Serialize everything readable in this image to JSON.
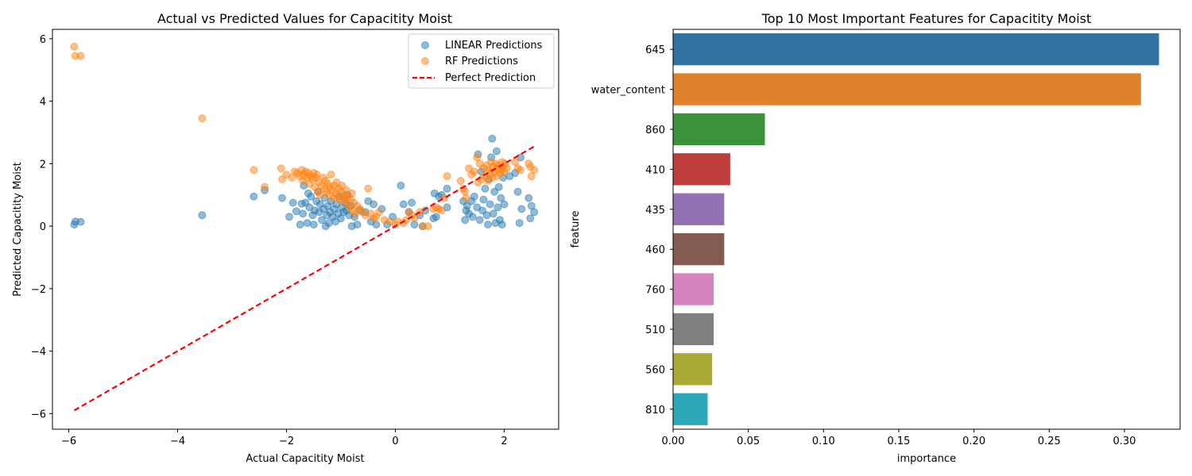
{
  "chart_data": [
    {
      "type": "scatter",
      "title": "Actual vs Predicted Values for Capacitity Moist",
      "xlabel": "Actual Capacitity Moist",
      "ylabel": "Predicted Capacitity Moist",
      "xlim": [
        -6.3,
        3.0
      ],
      "ylim": [
        -6.5,
        6.3
      ],
      "xticks": [
        -6,
        -4,
        -2,
        0,
        2
      ],
      "yticks": [
        -6,
        -4,
        -2,
        0,
        2,
        4,
        6
      ],
      "grid": false,
      "legend": "top-right",
      "series": [
        {
          "name": "LINEAR Predictions",
          "color": "#1f77b4",
          "points": [
            [
              -5.9,
              0.05
            ],
            [
              -5.88,
              0.15
            ],
            [
              -5.78,
              0.14
            ],
            [
              -3.55,
              0.35
            ],
            [
              -2.6,
              0.95
            ],
            [
              -2.4,
              1.15
            ],
            [
              -2.08,
              0.9
            ],
            [
              -1.95,
              0.3
            ],
            [
              -1.88,
              0.75
            ],
            [
              -1.82,
              0.48
            ],
            [
              -1.75,
              0.05
            ],
            [
              -1.72,
              0.72
            ],
            [
              -1.7,
              0.4
            ],
            [
              -1.68,
              1.3
            ],
            [
              -1.65,
              0.75
            ],
            [
              -1.62,
              0.1
            ],
            [
              -1.6,
              1.05
            ],
            [
              -1.58,
              0.6
            ],
            [
              -1.55,
              0.95
            ],
            [
              -1.52,
              0.35
            ],
            [
              -1.5,
              0.05
            ],
            [
              -1.48,
              0.5
            ],
            [
              -1.45,
              0.8
            ],
            [
              -1.42,
              1.1
            ],
            [
              -1.4,
              0.45
            ],
            [
              -1.38,
              0.7
            ],
            [
              -1.35,
              0.2
            ],
            [
              -1.32,
              0.55
            ],
            [
              -1.3,
              0.9
            ],
            [
              -1.28,
              0.0
            ],
            [
              -1.26,
              0.35
            ],
            [
              -1.24,
              0.65
            ],
            [
              -1.22,
              0.1
            ],
            [
              -1.2,
              0.45
            ],
            [
              -1.18,
              0.8
            ],
            [
              -1.15,
              0.3
            ],
            [
              -1.12,
              0.55
            ],
            [
              -1.1,
              0.15
            ],
            [
              -1.08,
              0.7
            ],
            [
              -1.05,
              0.4
            ],
            [
              -1.02,
              0.95
            ],
            [
              -1.0,
              0.25
            ],
            [
              -0.98,
              0.6
            ],
            [
              -0.95,
              0.45
            ],
            [
              -0.92,
              0.75
            ],
            [
              -0.9,
              0.5
            ],
            [
              -0.88,
              1.0
            ],
            [
              -0.85,
              0.35
            ],
            [
              -0.82,
              0.65
            ],
            [
              -0.8,
              0.0
            ],
            [
              -0.75,
              0.3
            ],
            [
              -0.7,
              0.05
            ],
            [
              -0.65,
              0.5
            ],
            [
              -0.55,
              0.45
            ],
            [
              -0.5,
              0.8
            ],
            [
              -0.45,
              0.15
            ],
            [
              -0.4,
              0.7
            ],
            [
              -0.35,
              0.05
            ],
            [
              -0.25,
              0.55
            ],
            [
              -0.15,
              0.05
            ],
            [
              -0.05,
              0.3
            ],
            [
              0.1,
              1.3
            ],
            [
              0.15,
              0.7
            ],
            [
              0.25,
              0.45
            ],
            [
              0.3,
              0.75
            ],
            [
              0.35,
              0.05
            ],
            [
              0.45,
              0.35
            ],
            [
              0.5,
              0.0
            ],
            [
              0.55,
              0.5
            ],
            [
              0.7,
              0.25
            ],
            [
              0.72,
              1.05
            ],
            [
              0.75,
              0.3
            ],
            [
              0.8,
              0.95
            ],
            [
              0.85,
              1.0
            ],
            [
              0.95,
              0.6
            ],
            [
              0.95,
              1.2
            ],
            [
              1.25,
              0.8
            ],
            [
              1.28,
              0.2
            ],
            [
              1.3,
              0.5
            ],
            [
              1.32,
              0.65
            ],
            [
              1.35,
              0.4
            ],
            [
              1.4,
              0.8
            ],
            [
              1.42,
              0.3
            ],
            [
              1.45,
              0.95
            ],
            [
              1.5,
              0.6
            ],
            [
              1.52,
              2.3
            ],
            [
              1.55,
              0.2
            ],
            [
              1.58,
              1.75
            ],
            [
              1.6,
              0.5
            ],
            [
              1.62,
              0.85
            ],
            [
              1.65,
              1.2
            ],
            [
              1.68,
              0.35
            ],
            [
              1.7,
              0.05
            ],
            [
              1.72,
              1.5
            ],
            [
              1.74,
              0.7
            ],
            [
              1.76,
              2.2
            ],
            [
              1.78,
              2.8
            ],
            [
              1.8,
              0.4
            ],
            [
              1.82,
              1.1
            ],
            [
              1.84,
              0.1
            ],
            [
              1.86,
              2.4
            ],
            [
              1.88,
              0.6
            ],
            [
              1.9,
              1.25
            ],
            [
              1.92,
              0.2
            ],
            [
              1.94,
              0.9
            ],
            [
              1.96,
              0.05
            ],
            [
              1.98,
              1.55
            ],
            [
              2.0,
              0.7
            ],
            [
              2.1,
              1.6
            ],
            [
              2.2,
              1.7
            ],
            [
              2.25,
              1.1
            ],
            [
              2.28,
              0.1
            ],
            [
              2.3,
              2.2
            ],
            [
              2.32,
              0.55
            ],
            [
              2.45,
              0.9
            ],
            [
              2.48,
              0.25
            ],
            [
              2.5,
              0.65
            ],
            [
              2.55,
              0.45
            ]
          ]
        },
        {
          "name": "RF Predictions",
          "color": "#ff7f0e",
          "points": [
            [
              -5.9,
              5.75
            ],
            [
              -5.88,
              5.45
            ],
            [
              -5.78,
              5.45
            ],
            [
              -3.55,
              3.45
            ],
            [
              -2.6,
              1.8
            ],
            [
              -2.4,
              1.25
            ],
            [
              -2.1,
              1.85
            ],
            [
              -2.08,
              1.5
            ],
            [
              -2.0,
              1.65
            ],
            [
              -1.9,
              1.55
            ],
            [
              -1.85,
              1.75
            ],
            [
              -1.8,
              1.7
            ],
            [
              -1.76,
              1.6
            ],
            [
              -1.72,
              1.8
            ],
            [
              -1.7,
              1.45
            ],
            [
              -1.68,
              1.65
            ],
            [
              -1.65,
              1.75
            ],
            [
              -1.62,
              1.55
            ],
            [
              -1.6,
              1.7
            ],
            [
              -1.58,
              1.35
            ],
            [
              -1.55,
              1.6
            ],
            [
              -1.52,
              1.5
            ],
            [
              -1.5,
              1.7
            ],
            [
              -1.48,
              1.25
            ],
            [
              -1.46,
              1.55
            ],
            [
              -1.44,
              1.65
            ],
            [
              -1.42,
              1.1
            ],
            [
              -1.4,
              1.4
            ],
            [
              -1.38,
              1.0
            ],
            [
              -1.35,
              1.3
            ],
            [
              -1.32,
              1.55
            ],
            [
              -1.3,
              1.2
            ],
            [
              -1.28,
              1.45
            ],
            [
              -1.26,
              1.1
            ],
            [
              -1.24,
              1.35
            ],
            [
              -1.22,
              1.0
            ],
            [
              -1.2,
              1.25
            ],
            [
              -1.18,
              1.65
            ],
            [
              -1.16,
              1.15
            ],
            [
              -1.14,
              0.9
            ],
            [
              -1.12,
              1.3
            ],
            [
              -1.1,
              1.05
            ],
            [
              -1.08,
              1.4
            ],
            [
              -1.06,
              0.95
            ],
            [
              -1.04,
              1.2
            ],
            [
              -1.02,
              0.85
            ],
            [
              -1.0,
              1.1
            ],
            [
              -0.98,
              1.3
            ],
            [
              -0.96,
              0.8
            ],
            [
              -0.94,
              1.0
            ],
            [
              -0.92,
              0.9
            ],
            [
              -0.9,
              1.15
            ],
            [
              -0.88,
              0.7
            ],
            [
              -0.86,
              0.95
            ],
            [
              -0.84,
              0.6
            ],
            [
              -0.82,
              0.85
            ],
            [
              -0.8,
              1.05
            ],
            [
              -0.78,
              0.5
            ],
            [
              -0.76,
              0.75
            ],
            [
              -0.74,
              0.4
            ],
            [
              -0.7,
              0.65
            ],
            [
              -0.65,
              0.55
            ],
            [
              -0.6,
              0.45
            ],
            [
              -0.55,
              0.35
            ],
            [
              -0.5,
              1.2
            ],
            [
              -0.45,
              0.4
            ],
            [
              -0.4,
              0.25
            ],
            [
              -0.35,
              0.3
            ],
            [
              -0.3,
              0.45
            ],
            [
              -0.2,
              0.2
            ],
            [
              -0.1,
              0.15
            ],
            [
              0.0,
              0.05
            ],
            [
              0.05,
              0.15
            ],
            [
              0.15,
              0.1
            ],
            [
              0.2,
              0.2
            ],
            [
              0.25,
              0.45
            ],
            [
              0.3,
              0.35
            ],
            [
              0.35,
              0.25
            ],
            [
              0.45,
              0.45
            ],
            [
              0.5,
              0.0
            ],
            [
              0.6,
              0.0
            ],
            [
              0.7,
              0.55
            ],
            [
              0.75,
              0.6
            ],
            [
              0.8,
              0.55
            ],
            [
              0.85,
              0.5
            ],
            [
              0.9,
              0.9
            ],
            [
              0.95,
              1.6
            ],
            [
              1.2,
              1.45
            ],
            [
              1.25,
              1.2
            ],
            [
              1.28,
              1.1
            ],
            [
              1.3,
              0.9
            ],
            [
              1.35,
              1.85
            ],
            [
              1.4,
              1.65
            ],
            [
              1.45,
              1.75
            ],
            [
              1.5,
              2.2
            ],
            [
              1.52,
              1.4
            ],
            [
              1.55,
              2.0
            ],
            [
              1.58,
              1.5
            ],
            [
              1.62,
              1.85
            ],
            [
              1.65,
              1.6
            ],
            [
              1.68,
              1.95
            ],
            [
              1.7,
              1.45
            ],
            [
              1.72,
              1.8
            ],
            [
              1.74,
              1.7
            ],
            [
              1.76,
              2.05
            ],
            [
              1.78,
              1.55
            ],
            [
              1.8,
              1.9
            ],
            [
              1.82,
              1.75
            ],
            [
              1.84,
              2.0
            ],
            [
              1.86,
              1.6
            ],
            [
              1.88,
              1.85
            ],
            [
              1.9,
              1.95
            ],
            [
              1.92,
              1.7
            ],
            [
              1.94,
              1.8
            ],
            [
              1.96,
              2.05
            ],
            [
              1.98,
              1.9
            ],
            [
              2.0,
              1.75
            ],
            [
              2.02,
              2.0
            ],
            [
              2.05,
              1.85
            ],
            [
              2.2,
              2.05
            ],
            [
              2.25,
              1.85
            ],
            [
              2.3,
              1.8
            ],
            [
              2.45,
              2.0
            ],
            [
              2.48,
              1.9
            ],
            [
              2.5,
              1.6
            ],
            [
              2.55,
              1.8
            ]
          ]
        },
        {
          "name": "Perfect Prediction",
          "color": "#ff0000",
          "line": [
            [
              -5.9,
              -5.9
            ],
            [
              2.55,
              2.55
            ]
          ]
        }
      ]
    },
    {
      "type": "bar",
      "orientation": "horizontal",
      "title": "Top 10 Most Important Features for Capacitity Moist",
      "xlabel": "importance",
      "ylabel": "feature",
      "xlim": [
        0,
        0.337
      ],
      "xticks": [
        "0.00",
        "0.05",
        "0.10",
        "0.15",
        "0.20",
        "0.25",
        "0.30"
      ],
      "grid": false,
      "categories": [
        "645",
        "water_content",
        "860",
        "410",
        "435",
        "460",
        "760",
        "510",
        "560",
        "810"
      ],
      "values": [
        0.323,
        0.311,
        0.061,
        0.038,
        0.034,
        0.034,
        0.027,
        0.027,
        0.026,
        0.023
      ],
      "colors": [
        "#3274a1",
        "#e1812c",
        "#3a923a",
        "#c03d3e",
        "#9372b2",
        "#845b53",
        "#d684bd",
        "#7f7f7f",
        "#a9aa35",
        "#2ea8b8"
      ]
    }
  ]
}
